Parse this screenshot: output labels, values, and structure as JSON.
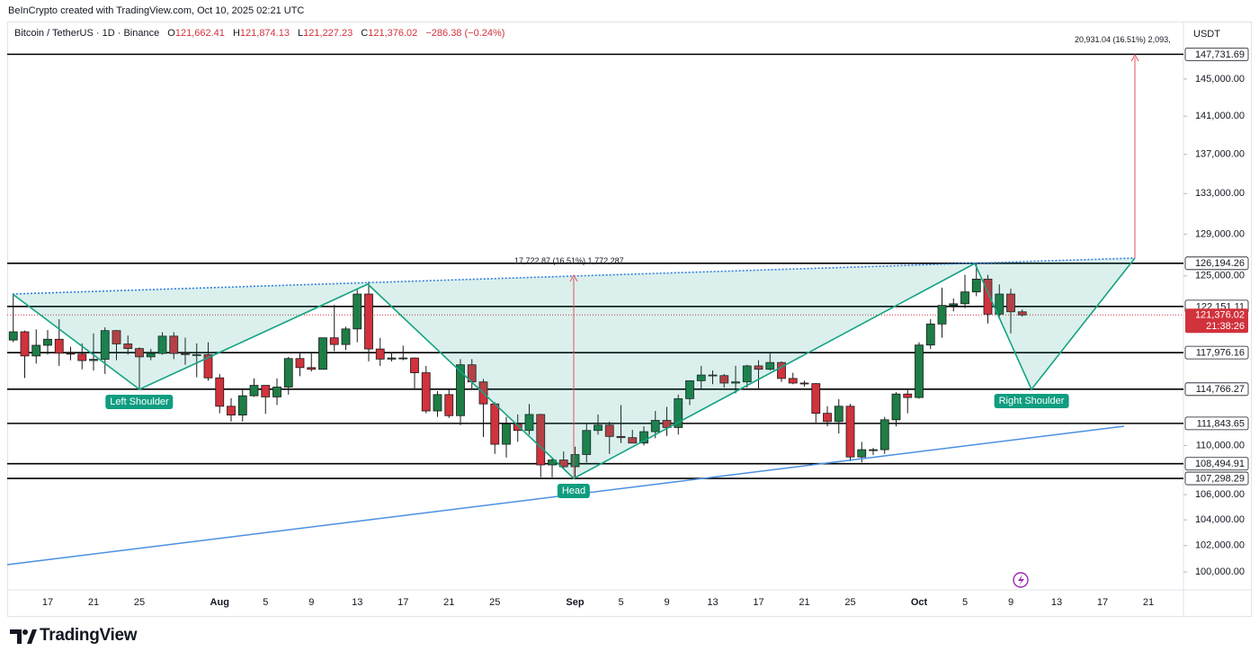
{
  "chart_data": {
    "type": "candlestick",
    "subtitle": "BeInCrypto created with TradingView.com, Oct 10, 2025 02:21 UTC",
    "title": "Bitcoin / TetherUS · 1D · Binance",
    "ohlc": [
      {
        "label": "O",
        "value": "121,662.41"
      },
      {
        "label": "H",
        "value": "121,874.13"
      },
      {
        "label": "L",
        "value": "121,227.23"
      },
      {
        "label": "C",
        "value": "121,376.02"
      }
    ],
    "change": "−286.38 (−0.24%)",
    "currency": "USDT",
    "branding": "TradingView",
    "log_scale": true,
    "grid": false,
    "up_color": "#1e7d45",
    "down_color": "#d1323c",
    "categories": [
      null,
      null,
      null,
      "17",
      null,
      null,
      null,
      "21",
      null,
      null,
      null,
      "25",
      null,
      null,
      null,
      null,
      null,
      null,
      "Aug",
      null,
      null,
      null,
      "5",
      null,
      null,
      null,
      "9",
      null,
      null,
      null,
      "13",
      null,
      null,
      null,
      "17",
      null,
      null,
      null,
      "21",
      null,
      null,
      null,
      "25",
      null,
      null,
      null,
      null,
      null,
      null,
      "Sep",
      null,
      null,
      null,
      "5",
      null,
      null,
      null,
      "9",
      null,
      null,
      null,
      "13",
      null,
      null,
      null,
      "17",
      null,
      null,
      null,
      "21",
      null,
      null,
      null,
      "25",
      null,
      null,
      null,
      null,
      null,
      "Oct",
      null,
      null,
      null,
      "5",
      null,
      null,
      null,
      "9",
      null,
      null,
      null,
      "13",
      null,
      null,
      null,
      "17",
      null,
      null,
      null,
      "21",
      null,
      null,
      null
    ],
    "open": [
      119100,
      119840,
      117680,
      118630,
      119170,
      117920,
      117840,
      117270,
      117380,
      119950,
      118750,
      118340,
      117600,
      117900,
      119450,
      117900,
      117800,
      117800,
      115750,
      113300,
      112550,
      114200,
      115100,
      114100,
      114950,
      117450,
      116650,
      116500,
      119300,
      118700,
      120100,
      123300,
      118300,
      117400,
      117500,
      117500,
      116200,
      112900,
      114300,
      112500,
      116900,
      115400,
      113500,
      110100,
      111800,
      111250,
      112600,
      108400,
      108800,
      108250,
      109250,
      111250,
      111700,
      110750,
      110650,
      110200,
      111150,
      112100,
      111500,
      113950,
      115500,
      116000,
      115950,
      115300,
      115400,
      116800,
      116500,
      117100,
      115700,
      115300,
      115250,
      112700,
      112000,
      113300,
      109050,
      109650,
      109650,
      112150,
      114350,
      114050,
      118650,
      120550,
      122250,
      122400,
      123500,
      124700,
      121450,
      123300,
      121662.41,
      null,
      null,
      null,
      null,
      null,
      null,
      null,
      null,
      null,
      null,
      null,
      null,
      null,
      null
    ],
    "high": [
      123218,
      119950,
      120063,
      120000,
      120980,
      118500,
      118800,
      119700,
      120250,
      120000,
      119500,
      118450,
      118300,
      119800,
      119800,
      119300,
      118800,
      118900,
      116100,
      114000,
      114800,
      115700,
      115100,
      115700,
      117600,
      117900,
      117900,
      119300,
      122300,
      120300,
      123700,
      124470,
      119300,
      117950,
      118600,
      117550,
      116800,
      114600,
      114800,
      117400,
      117400,
      115650,
      113650,
      112400,
      112600,
      113500,
      112650,
      108950,
      109500,
      109900,
      111800,
      112600,
      112000,
      113400,
      111300,
      111600,
      112900,
      113250,
      114300,
      115500,
      116800,
      116400,
      116100,
      116800,
      116900,
      117300,
      117900,
      117200,
      116200,
      115500,
      115300,
      113300,
      113900,
      113500,
      110300,
      109800,
      112400,
      114500,
      114800,
      118900,
      121000,
      123900,
      122900,
      125100,
      126200,
      125100,
      124200,
      123800,
      121874.13,
      null,
      null,
      null,
      null,
      null,
      null,
      null,
      null,
      null,
      null,
      null,
      null,
      null,
      null
    ],
    "low": [
      118905,
      115736,
      117000,
      117800,
      116800,
      117300,
      116500,
      116400,
      116100,
      117300,
      117800,
      114700,
      117300,
      117800,
      117400,
      116900,
      115800,
      115500,
      112700,
      112000,
      112000,
      114100,
      112650,
      113400,
      114300,
      115900,
      116300,
      116500,
      118100,
      118200,
      118900,
      117200,
      116800,
      117200,
      117300,
      114700,
      112700,
      112400,
      112300,
      111700,
      114700,
      110700,
      109300,
      109000,
      110300,
      110900,
      107400,
      107400,
      108100,
      107300,
      108600,
      110900,
      109300,
      110200,
      110200,
      110000,
      110600,
      110800,
      110900,
      113400,
      114800,
      115200,
      114900,
      114400,
      114900,
      114700,
      116400,
      115400,
      115200,
      115000,
      111900,
      111600,
      111000,
      108700,
      108600,
      109200,
      109300,
      111600,
      112700,
      113950,
      118300,
      119300,
      121700,
      122000,
      123100,
      120600,
      121000,
      119700,
      121227.23,
      null,
      null,
      null,
      null,
      null,
      null,
      null,
      null,
      null,
      null,
      null,
      null,
      null,
      null
    ],
    "close": [
      119840,
      117680,
      118630,
      119170,
      117920,
      117840,
      117270,
      117380,
      119950,
      118750,
      118340,
      117600,
      117900,
      119450,
      117900,
      117800,
      117800,
      115750,
      113300,
      112550,
      114200,
      115100,
      114100,
      114950,
      117450,
      116650,
      116500,
      119300,
      118700,
      120100,
      123300,
      118300,
      117400,
      117500,
      117500,
      116200,
      112900,
      114300,
      112500,
      116900,
      115400,
      113500,
      110100,
      111800,
      111250,
      112600,
      108400,
      108800,
      108250,
      109250,
      111250,
      111700,
      110750,
      110650,
      110200,
      111150,
      112100,
      111500,
      113950,
      115500,
      116000,
      115950,
      115300,
      115400,
      116800,
      116500,
      117100,
      115700,
      115300,
      115250,
      112700,
      112000,
      113300,
      109050,
      109650,
      109650,
      112150,
      114350,
      114050,
      118650,
      120550,
      122250,
      122400,
      123500,
      124700,
      121450,
      123300,
      121662.41,
      121376.02,
      null,
      null,
      null,
      null,
      null,
      null,
      null,
      null,
      null,
      null,
      null,
      null,
      null,
      null
    ],
    "ylim": [
      98653,
      151420
    ],
    "yticks": [
      {
        "value": 145000,
        "label": "145,000.00"
      },
      {
        "value": 141000,
        "label": "141,000.00"
      },
      {
        "value": 137000,
        "label": "137,000.00"
      },
      {
        "value": 133000,
        "label": "133,000.00"
      },
      {
        "value": 129000,
        "label": "129,000.00"
      },
      {
        "value": 125000,
        "label": "125,000.00"
      },
      {
        "value": 110000,
        "label": "110,000.00"
      },
      {
        "value": 106000,
        "label": "106,000.00"
      },
      {
        "value": 104000,
        "label": "104,000.00"
      },
      {
        "value": 102000,
        "label": "102,000.00"
      },
      {
        "value": 100000,
        "label": "100,000.00"
      }
    ],
    "levels": [
      {
        "value": 147731.69,
        "label": "147,731.69"
      },
      {
        "value": 126194.26,
        "label": "126,194.26"
      },
      {
        "value": 122151.11,
        "label": "122,151.11"
      },
      {
        "value": 117976.16,
        "label": "117,976.16"
      },
      {
        "value": 114766.27,
        "label": "114,766.27"
      },
      {
        "value": 111843.65,
        "label": "111,843.65"
      },
      {
        "value": 108494.91,
        "label": "108,494.91"
      },
      {
        "value": 107298.29,
        "label": "107,298.29"
      }
    ],
    "current_price": {
      "value": 121376.02,
      "label": "121,376.02",
      "countdown": "21:38:26"
    },
    "annotations": {
      "left_shoulder": "Left Shoulder",
      "head": "Head",
      "right_shoulder": "Right Shoulder",
      "measure_1": "17,722.87 (16.51%) 1,772,287",
      "measure_2": "20,931.04 (16.51%) 2,093,"
    }
  }
}
